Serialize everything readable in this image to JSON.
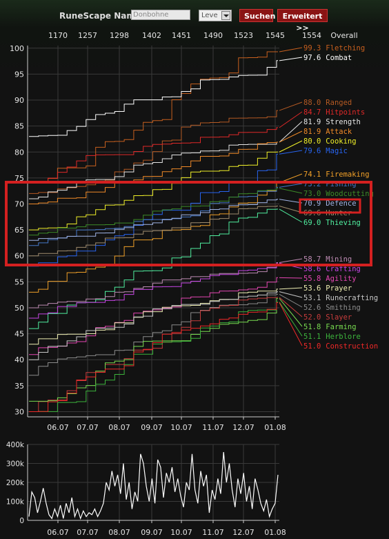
{
  "header": {
    "name_label": "RuneScape Name:",
    "name_value": "Donbohne",
    "select_value": "Leve",
    "search_label": "Suchen",
    "advanced_label": "Erweitert >>"
  },
  "colors": {
    "highlight": "#d42020",
    "grid": "#3a3a3a",
    "axis": "#cccccc"
  },
  "chart_data": [
    {
      "type": "line",
      "title": "",
      "xlabel": "",
      "ylabel": "",
      "x_ticks": [
        "06.07",
        "07.07",
        "08.07",
        "09.07",
        "10.07",
        "11.07",
        "12.07",
        "01.08"
      ],
      "y_ticks": [
        30,
        35,
        40,
        45,
        50,
        55,
        60,
        65,
        70,
        75,
        80,
        85,
        90,
        95,
        100
      ],
      "ylim": [
        29,
        100.5
      ],
      "top_ticks": [
        "1170",
        "1257",
        "1298",
        "1402",
        "1451",
        "1490",
        "1523",
        "1545",
        "1554",
        "Overall"
      ],
      "grid": true,
      "legend": "right",
      "series": [
        {
          "name": "Fletching",
          "final": "99.3",
          "color": "#c8601e",
          "start": 74,
          "end": 99.3
        },
        {
          "name": "Combat",
          "final": "97.6",
          "color": "#ffffff",
          "start": 83,
          "end": 97.6
        },
        {
          "name": "Ranged",
          "final": "88.0",
          "color": "#b55a23",
          "start": 72,
          "end": 88.0
        },
        {
          "name": "Hitpoints",
          "final": "84.7",
          "color": "#e02828",
          "start": 74,
          "end": 84.7
        },
        {
          "name": "Strength",
          "final": "81.9",
          "color": "#e6e6e6",
          "start": 71,
          "end": 81.9
        },
        {
          "name": "Attack",
          "final": "81.9",
          "color": "#f08a28",
          "start": 70,
          "end": 81.9
        },
        {
          "name": "Cooking",
          "final": "80.0",
          "color": "#f0f028",
          "start": 65,
          "end": 80.0
        },
        {
          "name": "Magic",
          "final": "79.6",
          "color": "#2864f0",
          "start": 58,
          "end": 79.6
        },
        {
          "name": "Firemaking",
          "final": "74.1",
          "color": "#f0a028",
          "start": 53,
          "end": 74.1
        },
        {
          "name": "Fishing",
          "final": "73.2",
          "color": "#4678c8",
          "start": 62,
          "end": 73.2
        },
        {
          "name": "Woodcutting",
          "final": "73.0",
          "color": "#3c8c28",
          "start": 64,
          "end": 73.0
        },
        {
          "name": "Defence",
          "final": "70.9",
          "color": "#a0b4e6",
          "start": 63,
          "end": 70.9
        },
        {
          "name": "Hunter",
          "final": "69.6",
          "color": "#a08c6e",
          "start": 60,
          "end": 69.6
        },
        {
          "name": "Thieving",
          "final": "69.0",
          "color": "#50f0a0",
          "start": 46,
          "end": 69.0
        },
        {
          "name": "Mining",
          "final": "58.7",
          "color": "#be8cb4",
          "start": 50,
          "end": 58.7
        },
        {
          "name": "Crafting",
          "final": "58.6",
          "color": "#c846e6",
          "start": 48,
          "end": 58.6
        },
        {
          "name": "Agility",
          "final": "55.8",
          "color": "#e646b4",
          "start": 41,
          "end": 55.8
        },
        {
          "name": "Prayer",
          "final": "53.6",
          "color": "#f0f0b4",
          "start": 43,
          "end": 53.6
        },
        {
          "name": "Runecrafting",
          "final": "53.1",
          "color": "#c8c8c8",
          "start": 40,
          "end": 53.1
        },
        {
          "name": "Smithing",
          "final": "52.6",
          "color": "#8c8c8c",
          "start": 37,
          "end": 52.6
        },
        {
          "name": "Slayer",
          "final": "52.0",
          "color": "#c83c3c",
          "start": 30,
          "end": 52.0
        },
        {
          "name": "Farming",
          "final": "51.8",
          "color": "#78dc50",
          "start": 32,
          "end": 51.8
        },
        {
          "name": "Herblore",
          "final": "51.1",
          "color": "#3cb43c",
          "start": 30,
          "end": 51.1
        },
        {
          "name": "Construction",
          "final": "51.0",
          "color": "#f02828",
          "start": 30,
          "end": 51.0
        }
      ],
      "highlight_label": "Defence"
    },
    {
      "type": "line",
      "title": "",
      "x_ticks": [
        "06.07",
        "07.07",
        "08.07",
        "09.07",
        "10.07",
        "11.07",
        "12.07",
        "01.08"
      ],
      "y_ticks": [
        "0",
        "100k",
        "200k",
        "300k",
        "400k"
      ],
      "ylim": [
        0,
        400000
      ],
      "grid": true,
      "values": [
        20000,
        150000,
        120000,
        40000,
        100000,
        170000,
        90000,
        30000,
        10000,
        60000,
        20000,
        80000,
        10000,
        90000,
        40000,
        120000,
        20000,
        60000,
        10000,
        50000,
        20000,
        40000,
        30000,
        60000,
        20000,
        50000,
        90000,
        200000,
        160000,
        260000,
        180000,
        240000,
        140000,
        300000,
        110000,
        200000,
        60000,
        150000,
        100000,
        350000,
        300000,
        180000,
        100000,
        220000,
        90000,
        320000,
        280000,
        120000,
        250000,
        200000,
        280000,
        150000,
        220000,
        130000,
        70000,
        200000,
        160000,
        350000,
        160000,
        90000,
        260000,
        180000,
        240000,
        40000,
        160000,
        110000,
        220000,
        140000,
        360000,
        200000,
        300000,
        160000,
        70000,
        220000,
        140000,
        250000,
        100000,
        180000,
        60000,
        220000,
        160000,
        90000,
        50000,
        110000,
        20000,
        60000,
        90000,
        240000
      ]
    }
  ]
}
